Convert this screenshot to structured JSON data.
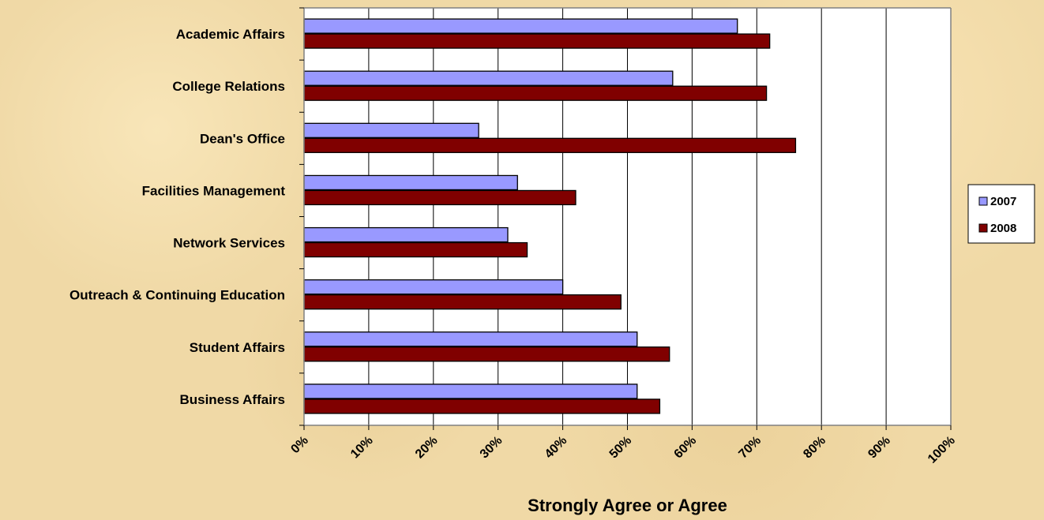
{
  "chart_data": {
    "type": "bar",
    "orientation": "horizontal",
    "categories": [
      "Academic Affairs",
      "College Relations",
      "Dean's Office",
      "Facilities Management",
      "Network Services",
      "Outreach & Continuing Education",
      "Student Affairs",
      "Business Affairs"
    ],
    "series": [
      {
        "name": "2007",
        "color": "#9999ff",
        "values": [
          67,
          57,
          27,
          33,
          31.5,
          40,
          51.5,
          51.5
        ]
      },
      {
        "name": "2008",
        "color": "#800000",
        "values": [
          72,
          71.5,
          76,
          42,
          34.5,
          49,
          56.5,
          55
        ]
      }
    ],
    "xlabel": "Strongly Agree or Agree",
    "xlim": [
      0,
      100
    ],
    "x_ticks": [
      "0%",
      "10%",
      "20%",
      "30%",
      "40%",
      "50%",
      "60%",
      "70%",
      "80%",
      "90%",
      "100%"
    ],
    "x_tick_values": [
      0,
      10,
      20,
      30,
      40,
      50,
      60,
      70,
      80,
      90,
      100
    ],
    "grid": "vertical",
    "legend_position": "right"
  }
}
